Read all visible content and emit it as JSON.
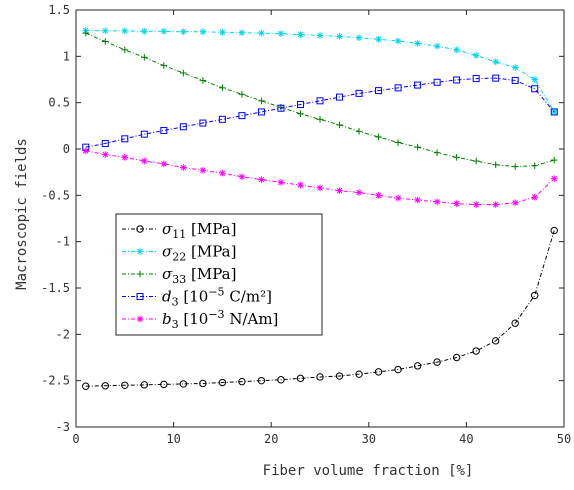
{
  "chart_data": {
    "type": "line",
    "xlabel": "Fiber volume fraction [%]",
    "ylabel": "Macroscopic fields",
    "xlim": [
      0,
      50
    ],
    "ylim": [
      -3,
      1.5
    ],
    "xticks": [
      "0",
      "10",
      "20",
      "30",
      "40",
      "50"
    ],
    "yticks": [
      "-3",
      "-2.5",
      "-2",
      "-1.5",
      "-1",
      "-0.5",
      "0",
      "0.5",
      "1",
      "1.5"
    ],
    "grid": false,
    "legend_position": "lower-left",
    "x": [
      1,
      3,
      5,
      7,
      9,
      11,
      13,
      15,
      17,
      19,
      21,
      23,
      25,
      27,
      29,
      31,
      33,
      35,
      37,
      39,
      41,
      43,
      45,
      47,
      49
    ],
    "series": [
      {
        "name": "σ11 [MPa]",
        "label_main": "σ",
        "label_sub": "11",
        "label_rest": " [MPa]",
        "label_sup": "",
        "label_tail": "",
        "color": "#000000",
        "marker": "circle",
        "values": [
          -2.56,
          -2.555,
          -2.55,
          -2.545,
          -2.54,
          -2.535,
          -2.53,
          -2.52,
          -2.51,
          -2.5,
          -2.49,
          -2.475,
          -2.46,
          -2.45,
          -2.43,
          -2.405,
          -2.38,
          -2.34,
          -2.3,
          -2.25,
          -2.18,
          -2.07,
          -1.88,
          -1.58,
          -0.88
        ]
      },
      {
        "name": "σ22 [MPa]",
        "label_main": "σ",
        "label_sub": "22",
        "label_rest": " [MPa]",
        "label_sup": "",
        "label_tail": "",
        "color": "#00d6e8",
        "marker": "star",
        "values": [
          1.28,
          1.275,
          1.275,
          1.27,
          1.27,
          1.265,
          1.265,
          1.26,
          1.255,
          1.25,
          1.245,
          1.235,
          1.225,
          1.215,
          1.2,
          1.185,
          1.165,
          1.14,
          1.11,
          1.07,
          1.01,
          0.94,
          0.88,
          0.75,
          0.4
        ]
      },
      {
        "name": "σ33 [MPa]",
        "label_main": "σ",
        "label_sub": "33",
        "label_rest": " [MPa]",
        "label_sup": "",
        "label_tail": "",
        "color": "#007f00",
        "marker": "plus",
        "values": [
          1.25,
          1.16,
          1.07,
          0.99,
          0.9,
          0.82,
          0.74,
          0.66,
          0.59,
          0.52,
          0.45,
          0.38,
          0.32,
          0.26,
          0.19,
          0.13,
          0.07,
          0.02,
          -0.04,
          -0.09,
          -0.13,
          -0.17,
          -0.19,
          -0.18,
          -0.12
        ]
      },
      {
        "name": "d3 [10−5 C/m2]",
        "label_main": "d",
        "label_sub": "3",
        "label_rest": " [10",
        "label_sup": "−5",
        "label_tail": " C/m²]",
        "color": "#0000ff",
        "marker": "square",
        "values": [
          0.02,
          0.06,
          0.11,
          0.16,
          0.2,
          0.24,
          0.28,
          0.32,
          0.36,
          0.4,
          0.44,
          0.48,
          0.52,
          0.56,
          0.6,
          0.63,
          0.66,
          0.69,
          0.72,
          0.745,
          0.76,
          0.765,
          0.74,
          0.65,
          0.4
        ]
      },
      {
        "name": "b3 [10−3 N/Am]",
        "label_main": "b",
        "label_sub": "3",
        "label_rest": " [10",
        "label_sup": "−3",
        "label_tail": " N/Am]",
        "color": "#ff00ff",
        "marker": "star",
        "values": [
          -0.02,
          -0.06,
          -0.09,
          -0.13,
          -0.16,
          -0.2,
          -0.23,
          -0.26,
          -0.3,
          -0.33,
          -0.36,
          -0.39,
          -0.42,
          -0.45,
          -0.47,
          -0.5,
          -0.53,
          -0.55,
          -0.57,
          -0.59,
          -0.6,
          -0.6,
          -0.58,
          -0.52,
          -0.32
        ]
      }
    ]
  }
}
